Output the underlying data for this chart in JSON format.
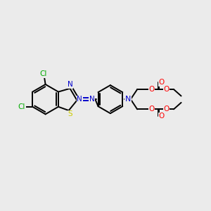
{
  "bg_color": "#ebebeb",
  "bond_color": "#000000",
  "bond_width": 1.4,
  "figsize": [
    3.0,
    3.0
  ],
  "dpi": 100,
  "colors": {
    "N": "#0000cc",
    "O": "#ff0000",
    "S": "#cccc00",
    "Cl": "#00aa00",
    "C": "#000000"
  },
  "xlim": [
    0,
    10
  ],
  "ylim": [
    0,
    10
  ]
}
